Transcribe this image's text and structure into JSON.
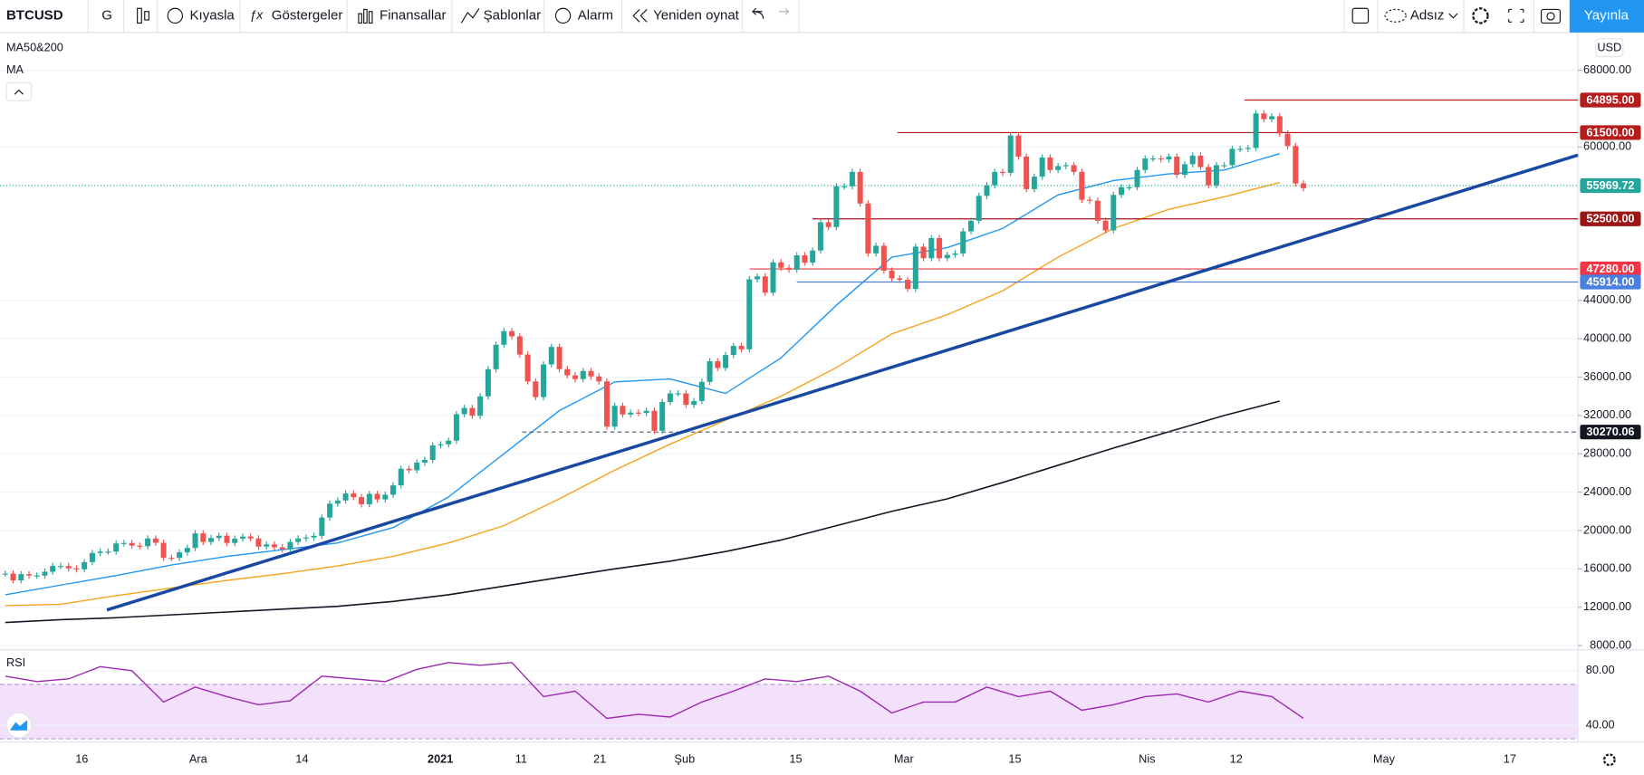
{
  "toolbar": {
    "symbol": "BTCUSD",
    "interval": "G",
    "items": [
      "Kıyasla",
      "Göstergeler",
      "Finansallar",
      "Şablonlar",
      "Alarm",
      "Yeniden oynat"
    ],
    "layout_name": "Adsız",
    "publish": "Yayınla"
  },
  "chart_data": {
    "type": "candlestick",
    "legend": [
      "MA50&200",
      "MA"
    ],
    "currency": "USD",
    "colors": {
      "up": "#26a69a",
      "down": "#ef5350"
    },
    "close": [
      15500,
      14800,
      15450,
      15300,
      15300,
      15700,
      16300,
      16300,
      16050,
      15950,
      16700,
      17650,
      17800,
      17800,
      18650,
      18700,
      18420,
      18360,
      19160,
      18720,
      17150,
      17140,
      17720,
      18180,
      19700,
      18800,
      19220,
      19450,
      18700,
      19150,
      19360,
      19170,
      18320,
      18550,
      18250,
      18030,
      18800,
      19170,
      19270,
      19440,
      21350,
      22800,
      23130,
      23860,
      23480,
      22740,
      23820,
      23240,
      23730,
      24710,
      26440,
      26280,
      27080,
      27360,
      28880,
      28990,
      29370,
      32130,
      32780,
      31970,
      33990,
      36820,
      39370,
      40790,
      40250,
      38350,
      35550,
      33910,
      37320,
      39150,
      36830,
      36180,
      35790,
      36630,
      36070,
      35550,
      30830,
      33000,
      32100,
      32300,
      32250,
      32480,
      30400,
      33400,
      34300,
      34300,
      33100,
      33500,
      35500,
      37650,
      36950,
      38300,
      39250,
      38900,
      46200,
      46500,
      44800,
      47970,
      47400,
      47200,
      48700,
      47940,
      49200,
      52150,
      51650,
      55900,
      55900,
      57400,
      54100,
      48900,
      49700,
      47100,
      46300,
      46150,
      45200,
      49600,
      48400,
      50500,
      48400,
      48750,
      48900,
      51200,
      52300,
      54900,
      56000,
      57400,
      57300,
      61200,
      59000,
      55600,
      56900,
      58900,
      57600,
      58000,
      58100,
      57400,
      54500,
      54400,
      52300,
      51300,
      55000,
      55800,
      55800,
      57600,
      58800,
      58800,
      58700,
      59000,
      57100,
      58200,
      59100,
      57900,
      56000,
      58100,
      58100,
      59800,
      59800,
      59900,
      63500,
      62900,
      63200,
      61400,
      60100,
      56200,
      55700
    ],
    "ma_series": [
      {
        "color": "#2196f3",
        "values": [
          13300,
          14300,
          15300,
          16400,
          17300,
          18000,
          18700,
          20300,
          23500,
          28000,
          32500,
          35500,
          35800,
          34300,
          38000,
          43500,
          48500,
          49500,
          51500,
          55000,
          56500,
          57200,
          57600,
          59300
        ]
      },
      {
        "color": "#f7a21b",
        "values": [
          12160,
          12300,
          13200,
          14000,
          14800,
          15500,
          16300,
          17300,
          18700,
          20500,
          23300,
          26300,
          29000,
          31500,
          34000,
          37000,
          40500,
          42500,
          45000,
          48500,
          51500,
          53500,
          54800,
          56300
        ]
      },
      {
        "color": "#131722",
        "values": [
          10400,
          10700,
          10900,
          11200,
          11500,
          11800,
          12100,
          12600,
          13300,
          14200,
          15100,
          16000,
          16800,
          17800,
          19000,
          20500,
          22000,
          23300,
          25000,
          26800,
          28600,
          30300,
          32000,
          33500
        ]
      }
    ],
    "ylim": [
      7560,
      71940
    ],
    "yticks": [
      {
        "value": 68000,
        "label": "68000.00"
      },
      {
        "value": 60000,
        "label": "60000.00"
      },
      {
        "value": 44000,
        "label": "44000.00"
      },
      {
        "value": 40000,
        "label": "40000.00"
      },
      {
        "value": 36000,
        "label": "36000.00"
      },
      {
        "value": 32000,
        "label": "32000.00"
      },
      {
        "value": 28000,
        "label": "28000.00"
      },
      {
        "value": 24000,
        "label": "24000.00"
      },
      {
        "value": 20000,
        "label": "20000.00"
      },
      {
        "value": 16000,
        "label": "16000.00"
      },
      {
        "value": 12000,
        "label": "12000.00"
      },
      {
        "value": 8000,
        "label": "8000.00"
      }
    ],
    "price_lines": [
      {
        "value": 64895,
        "label": "64895.00",
        "color": "#b71c1c"
      },
      {
        "value": 61500,
        "label": "61500.00",
        "color": "#b71c1c"
      },
      {
        "value": 55969.72,
        "label": "55969.72",
        "color": "#26a69a"
      },
      {
        "value": 52500,
        "label": "52500.00",
        "color": "#9c1616"
      },
      {
        "value": 47280,
        "label": "47280.00",
        "color": "#f23645"
      },
      {
        "value": 45914,
        "label": "45914.00",
        "color": "#4a7fe0"
      },
      {
        "value": 30270.06,
        "label": "30270.06",
        "color": "#131722"
      }
    ],
    "x_labels": [
      "16",
      "Ara",
      "14",
      "2021",
      "11",
      "21",
      "Şub",
      "15",
      "Mar",
      "15",
      "Nis",
      "12",
      "May",
      "17"
    ],
    "rsi": {
      "name": "RSI",
      "color": "#9c27b0",
      "band_color": "#f3e1fb",
      "values": [
        76,
        72,
        74,
        83,
        80,
        57,
        68,
        61,
        55,
        58,
        76,
        74,
        72,
        81,
        86,
        84,
        86,
        61,
        65,
        45,
        48,
        46,
        57,
        65,
        74,
        72,
        76,
        65,
        49,
        57,
        57,
        68,
        61,
        65,
        51,
        55,
        61,
        63,
        57,
        65,
        61,
        45
      ],
      "ylim": [
        27.7,
        95.4
      ],
      "band": [
        30,
        70
      ],
      "yticks": [
        {
          "value": 80,
          "label": "80.00"
        },
        {
          "value": 40,
          "label": "40.00"
        }
      ]
    }
  }
}
